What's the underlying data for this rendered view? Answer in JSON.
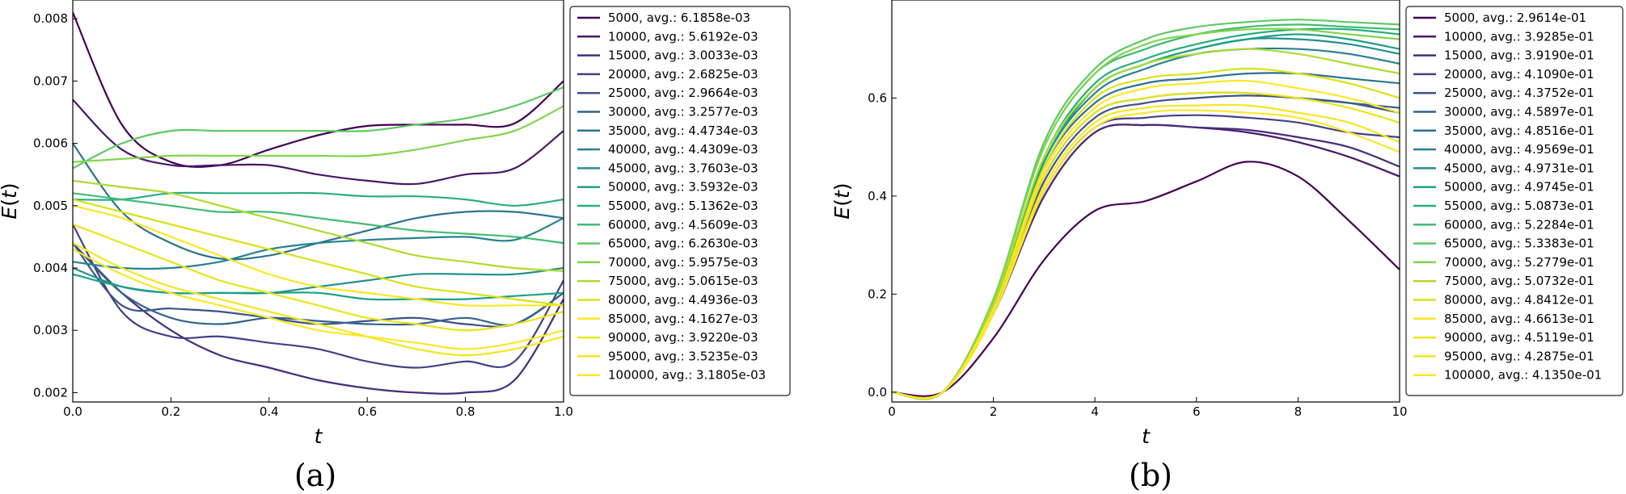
{
  "chart_data": [
    {
      "type": "line",
      "panel_label": "(a)",
      "xlabel": "t",
      "ylabel": "E(t)",
      "xlim": [
        0.0,
        1.0
      ],
      "ylim": [
        0.00185,
        0.0083
      ],
      "x_ticks": [
        "0.0",
        "0.2",
        "0.4",
        "0.6",
        "0.8",
        "1.0"
      ],
      "y_ticks": [
        "0.002",
        "0.003",
        "0.004",
        "0.005",
        "0.006",
        "0.007",
        "0.008"
      ],
      "x_tick_values": [
        0.0,
        0.2,
        0.4,
        0.6,
        0.8,
        1.0
      ],
      "y_tick_values": [
        0.002,
        0.003,
        0.004,
        0.005,
        0.006,
        0.007,
        0.008
      ],
      "legend_position": "outside-right",
      "x": [
        0.0,
        0.1,
        0.2,
        0.3,
        0.4,
        0.5,
        0.6,
        0.7,
        0.8,
        0.9,
        1.0
      ],
      "series": [
        {
          "name": "5000, avg.: 6.1858e-03",
          "color": "#440154",
          "values": [
            0.0081,
            0.0063,
            0.0057,
            0.00565,
            0.0059,
            0.00613,
            0.00628,
            0.0063,
            0.0063,
            0.00632,
            0.007
          ]
        },
        {
          "name": "10000, avg.: 5.6192e-03",
          "color": "#48186a",
          "values": [
            0.0067,
            0.0059,
            0.00565,
            0.00565,
            0.00565,
            0.0055,
            0.0054,
            0.00535,
            0.0055,
            0.0056,
            0.0062
          ]
        },
        {
          "name": "15000, avg.: 3.0033e-03",
          "color": "#472d7b",
          "values": [
            0.0044,
            0.0036,
            0.003,
            0.0026,
            0.0024,
            0.0022,
            0.00207,
            0.002,
            0.002,
            0.0022,
            0.0035
          ]
        },
        {
          "name": "20000, avg.: 2.6825e-03",
          "color": "#424086",
          "values": [
            0.0047,
            0.0033,
            0.0029,
            0.0029,
            0.0028,
            0.0027,
            0.0025,
            0.0024,
            0.0025,
            0.0025,
            0.0038
          ]
        },
        {
          "name": "25000, avg.: 2.9664e-03",
          "color": "#3b528b",
          "values": [
            0.0044,
            0.0034,
            0.00335,
            0.0033,
            0.0032,
            0.0031,
            0.00315,
            0.0032,
            0.0031,
            0.0031,
            0.0036
          ]
        },
        {
          "name": "30000, avg.: 3.2577e-03",
          "color": "#33638d",
          "values": [
            0.0044,
            0.0036,
            0.0032,
            0.0031,
            0.0032,
            0.00315,
            0.0031,
            0.0031,
            0.0032,
            0.0031,
            0.0036
          ]
        },
        {
          "name": "35000, avg.: 4.4734e-03",
          "color": "#2c728e",
          "values": [
            0.006,
            0.0049,
            0.0044,
            0.00415,
            0.0042,
            0.0044,
            0.0046,
            0.0048,
            0.0049,
            0.0049,
            0.0048
          ]
        },
        {
          "name": "40000, avg.: 4.4309e-03",
          "color": "#26828e",
          "values": [
            0.0041,
            0.004,
            0.004,
            0.0041,
            0.0043,
            0.0044,
            0.00445,
            0.00448,
            0.0045,
            0.00445,
            0.0048
          ]
        },
        {
          "name": "45000, avg.: 3.7603e-03",
          "color": "#21918c",
          "values": [
            0.004,
            0.0037,
            0.0036,
            0.0036,
            0.0036,
            0.0037,
            0.0038,
            0.0039,
            0.0039,
            0.0039,
            0.004
          ]
        },
        {
          "name": "50000, avg.: 3.5932e-03",
          "color": "#1fa088",
          "values": [
            0.0039,
            0.0037,
            0.0036,
            0.0036,
            0.0036,
            0.0036,
            0.0035,
            0.0035,
            0.0035,
            0.00355,
            0.0036
          ]
        },
        {
          "name": "55000, avg.: 5.1362e-03",
          "color": "#28ae80",
          "values": [
            0.0051,
            0.0051,
            0.0052,
            0.0052,
            0.0052,
            0.0052,
            0.00515,
            0.00515,
            0.0051,
            0.005,
            0.0051
          ]
        },
        {
          "name": "60000, avg.: 4.5609e-03",
          "color": "#3fbc73",
          "values": [
            0.0052,
            0.0051,
            0.005,
            0.0049,
            0.0049,
            0.0048,
            0.0047,
            0.0046,
            0.00455,
            0.0045,
            0.0044
          ]
        },
        {
          "name": "65000, avg.: 6.2630e-03",
          "color": "#5ec962",
          "values": [
            0.0056,
            0.006,
            0.0062,
            0.0062,
            0.0062,
            0.0062,
            0.0062,
            0.0063,
            0.0064,
            0.0066,
            0.0069
          ]
        },
        {
          "name": "70000, avg.: 5.9575e-03",
          "color": "#84d44b",
          "values": [
            0.0057,
            0.00575,
            0.0058,
            0.0058,
            0.0058,
            0.0058,
            0.0058,
            0.0059,
            0.00605,
            0.0062,
            0.0066
          ]
        },
        {
          "name": "75000, avg.: 5.0615e-03",
          "color": "#addc30",
          "values": [
            0.0054,
            0.0053,
            0.0052,
            0.005,
            0.0048,
            0.0046,
            0.0044,
            0.0042,
            0.0041,
            0.004,
            0.00395
          ]
        },
        {
          "name": "80000, avg.: 4.4936e-03",
          "color": "#d8e219",
          "values": [
            0.0051,
            0.0049,
            0.0047,
            0.0045,
            0.0043,
            0.0041,
            0.0039,
            0.0037,
            0.0036,
            0.0035,
            0.0034
          ]
        },
        {
          "name": "85000, avg.: 4.1627e-03",
          "color": "#fde725",
          "values": [
            0.005,
            0.0048,
            0.0045,
            0.0042,
            0.0039,
            0.0037,
            0.0036,
            0.0035,
            0.0034,
            0.0034,
            0.0034
          ]
        },
        {
          "name": "90000, avg.: 3.9220e-03",
          "color": "#e9e51a",
          "values": [
            0.0047,
            0.0044,
            0.0041,
            0.0038,
            0.0036,
            0.0034,
            0.0032,
            0.0031,
            0.003,
            0.0031,
            0.0033
          ]
        },
        {
          "name": "95000, avg.: 3.5235e-03",
          "color": "#f6e620",
          "values": [
            0.0044,
            0.004,
            0.0037,
            0.0035,
            0.0033,
            0.0031,
            0.0029,
            0.0027,
            0.0026,
            0.0027,
            0.0029
          ]
        },
        {
          "name": "100000, avg.: 3.1805e-03",
          "color": "#fde725",
          "values": [
            0.0043,
            0.0039,
            0.0036,
            0.0034,
            0.0032,
            0.003,
            0.0029,
            0.0028,
            0.0027,
            0.0028,
            0.003
          ]
        }
      ]
    },
    {
      "type": "line",
      "panel_label": "(b)",
      "xlabel": "t",
      "ylabel": "E(t)",
      "xlim": [
        0,
        10
      ],
      "ylim": [
        -0.02,
        0.8
      ],
      "x_ticks": [
        "0",
        "2",
        "4",
        "6",
        "8",
        "10"
      ],
      "y_ticks": [
        "0.0",
        "0.2",
        "0.4",
        "0.6"
      ],
      "x_tick_values": [
        0,
        2,
        4,
        6,
        8,
        10
      ],
      "y_tick_values": [
        0.0,
        0.2,
        0.4,
        0.6
      ],
      "legend_position": "outside-right",
      "x": [
        0,
        1,
        2,
        3,
        4,
        5,
        6,
        7,
        8,
        9,
        10
      ],
      "series": [
        {
          "name": "5000, avg.: 2.9614e-01",
          "color": "#440154",
          "values": [
            0.0,
            0.0,
            0.11,
            0.27,
            0.37,
            0.39,
            0.43,
            0.47,
            0.44,
            0.35,
            0.25
          ]
        },
        {
          "name": "10000, avg.: 3.9285e-01",
          "color": "#48186a",
          "values": [
            0.0,
            0.0,
            0.16,
            0.4,
            0.53,
            0.545,
            0.54,
            0.53,
            0.51,
            0.48,
            0.44
          ]
        },
        {
          "name": "15000, avg.: 3.9190e-01",
          "color": "#472d7b",
          "values": [
            0.0,
            0.0,
            0.16,
            0.4,
            0.53,
            0.545,
            0.54,
            0.535,
            0.52,
            0.5,
            0.46
          ]
        },
        {
          "name": "20000, avg.: 4.1090e-01",
          "color": "#424086",
          "values": [
            0.0,
            0.0,
            0.16,
            0.41,
            0.54,
            0.56,
            0.565,
            0.56,
            0.55,
            0.53,
            0.52
          ]
        },
        {
          "name": "25000, avg.: 4.3752e-01",
          "color": "#3b528b",
          "values": [
            0.0,
            0.0,
            0.17,
            0.43,
            0.56,
            0.59,
            0.6,
            0.605,
            0.6,
            0.59,
            0.57
          ]
        },
        {
          "name": "30000, avg.: 4.5897e-01",
          "color": "#33638d",
          "values": [
            0.0,
            0.0,
            0.17,
            0.44,
            0.57,
            0.6,
            0.61,
            0.61,
            0.6,
            0.59,
            0.58
          ]
        },
        {
          "name": "35000, avg.: 4.8516e-01",
          "color": "#2c728e",
          "values": [
            0.0,
            0.0,
            0.18,
            0.46,
            0.59,
            0.63,
            0.64,
            0.65,
            0.65,
            0.64,
            0.63
          ]
        },
        {
          "name": "40000, avg.: 4.9569e-01",
          "color": "#26828e",
          "values": [
            0.0,
            0.0,
            0.18,
            0.47,
            0.61,
            0.66,
            0.69,
            0.7,
            0.7,
            0.69,
            0.67
          ]
        },
        {
          "name": "45000, avg.: 4.9731e-01",
          "color": "#21918c",
          "values": [
            0.0,
            0.0,
            0.18,
            0.47,
            0.62,
            0.67,
            0.7,
            0.72,
            0.72,
            0.71,
            0.69
          ]
        },
        {
          "name": "50000, avg.: 4.9745e-01",
          "color": "#1fa088",
          "values": [
            0.0,
            0.0,
            0.18,
            0.47,
            0.62,
            0.67,
            0.7,
            0.72,
            0.73,
            0.72,
            0.7
          ]
        },
        {
          "name": "55000, avg.: 5.0873e-01",
          "color": "#28ae80",
          "values": [
            0.0,
            0.0,
            0.18,
            0.48,
            0.63,
            0.68,
            0.71,
            0.73,
            0.74,
            0.74,
            0.73
          ]
        },
        {
          "name": "60000, avg.: 5.2284e-01",
          "color": "#3fbc73",
          "values": [
            0.0,
            0.0,
            0.19,
            0.5,
            0.65,
            0.7,
            0.73,
            0.745,
            0.75,
            0.745,
            0.74
          ]
        },
        {
          "name": "65000, avg.: 5.3383e-01",
          "color": "#5ec962",
          "values": [
            0.0,
            0.0,
            0.19,
            0.51,
            0.66,
            0.72,
            0.745,
            0.755,
            0.76,
            0.755,
            0.75
          ]
        },
        {
          "name": "70000, avg.: 5.2779e-01",
          "color": "#84d44b",
          "values": [
            0.0,
            0.0,
            0.19,
            0.5,
            0.65,
            0.71,
            0.73,
            0.74,
            0.74,
            0.73,
            0.72
          ]
        },
        {
          "name": "75000, avg.: 5.0732e-01",
          "color": "#addc30",
          "values": [
            0.0,
            0.0,
            0.18,
            0.48,
            0.62,
            0.67,
            0.69,
            0.7,
            0.69,
            0.67,
            0.65
          ]
        },
        {
          "name": "80000, avg.: 4.8412e-01",
          "color": "#d8e219",
          "values": [
            0.0,
            0.0,
            0.17,
            0.46,
            0.6,
            0.64,
            0.65,
            0.66,
            0.65,
            0.63,
            0.6
          ]
        },
        {
          "name": "85000, avg.: 4.6613e-01",
          "color": "#fde725",
          "values": [
            0.0,
            0.0,
            0.17,
            0.45,
            0.58,
            0.62,
            0.63,
            0.635,
            0.62,
            0.6,
            0.57
          ]
        },
        {
          "name": "90000, avg.: 4.5119e-01",
          "color": "#e9e51a",
          "values": [
            0.0,
            0.0,
            0.16,
            0.44,
            0.57,
            0.6,
            0.61,
            0.61,
            0.6,
            0.58,
            0.55
          ]
        },
        {
          "name": "95000, avg.: 4.2875e-01",
          "color": "#f6e620",
          "values": [
            0.0,
            0.0,
            0.16,
            0.42,
            0.55,
            0.58,
            0.585,
            0.585,
            0.57,
            0.55,
            0.51
          ]
        },
        {
          "name": "100000, avg.: 4.1350e-01",
          "color": "#fde725",
          "values": [
            0.0,
            0.0,
            0.16,
            0.41,
            0.54,
            0.57,
            0.575,
            0.57,
            0.56,
            0.53,
            0.49
          ]
        }
      ]
    }
  ]
}
